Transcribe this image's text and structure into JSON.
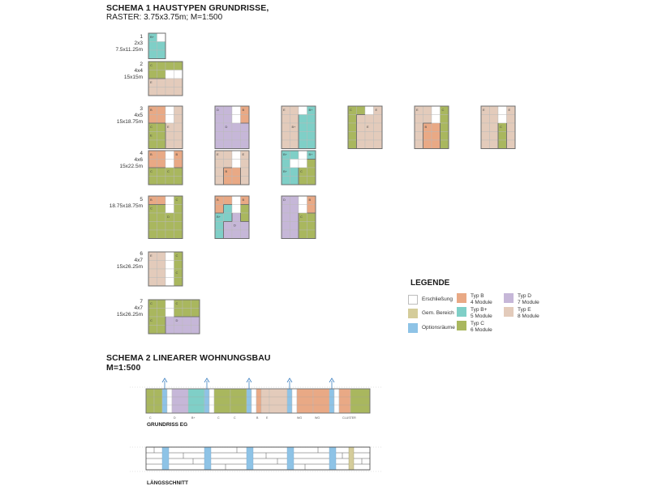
{
  "header": {
    "title": "SCHEMA 1 HAUSTYPEN GRUNDRISSE,",
    "subtitle": "RASTER: 3.75x3.75m;  M=1:500"
  },
  "colors": {
    "erschliessung": "#ffffff",
    "gem_bereich": "#d4cc9a",
    "optionsraeume": "#8ec3e6",
    "typ_b": "#e9a985",
    "typ_bplus": "#7fcfc7",
    "typ_c": "#a9b75e",
    "typ_d": "#c6b7d8",
    "typ_e": "#e3cbbb",
    "grid_line": "#b9b9b9",
    "outline": "#6d6d6d"
  },
  "rows": [
    {
      "num": "1",
      "grid": "2x3",
      "size": "7.5x11.25m"
    },
    {
      "num": "2",
      "grid": "4x4",
      "size": "15x15m"
    },
    {
      "num": "3",
      "grid": "4x5",
      "size": "15x18.75m"
    },
    {
      "num": "4",
      "grid": "4x6",
      "size": "15x22.5m"
    },
    {
      "num": "5",
      "grid": "",
      "size": "18.75x18.75m"
    },
    {
      "num": "6",
      "grid": "4x7",
      "size": "15x26.25m"
    },
    {
      "num": "7",
      "grid": "4x7",
      "size": "15x26.25m"
    }
  ],
  "legend": {
    "title": "LEGENDE",
    "items": [
      {
        "key": "erschliessung",
        "label": "Erschließung",
        "sub": ""
      },
      {
        "key": "gem_bereich",
        "label": "Gem. Bereich",
        "sub": ""
      },
      {
        "key": "optionsraeume",
        "label": "Optionsräume",
        "sub": ""
      },
      {
        "key": "typ_b",
        "label": "Typ B",
        "sub": "4 Module"
      },
      {
        "key": "typ_bplus",
        "label": "Typ B+",
        "sub": "5 Module"
      },
      {
        "key": "typ_c",
        "label": "Typ C",
        "sub": "6 Module"
      },
      {
        "key": "typ_d",
        "label": "Typ D",
        "sub": "7 Module"
      },
      {
        "key": "typ_e",
        "label": "Typ E",
        "sub": "8 Module"
      }
    ]
  },
  "schema2": {
    "title": "SCHEMA 2 LINEARER WOHNUNGSBAU",
    "subtitle": "M=1:500",
    "plan_caption": "GRUNDRISS EG",
    "section_caption": "LÄNGSSCHNITT",
    "unit_labels": [
      "C",
      "D",
      "B+",
      "C",
      "C",
      "B",
      "E",
      "WG",
      "WG",
      "CLUSTER"
    ]
  }
}
